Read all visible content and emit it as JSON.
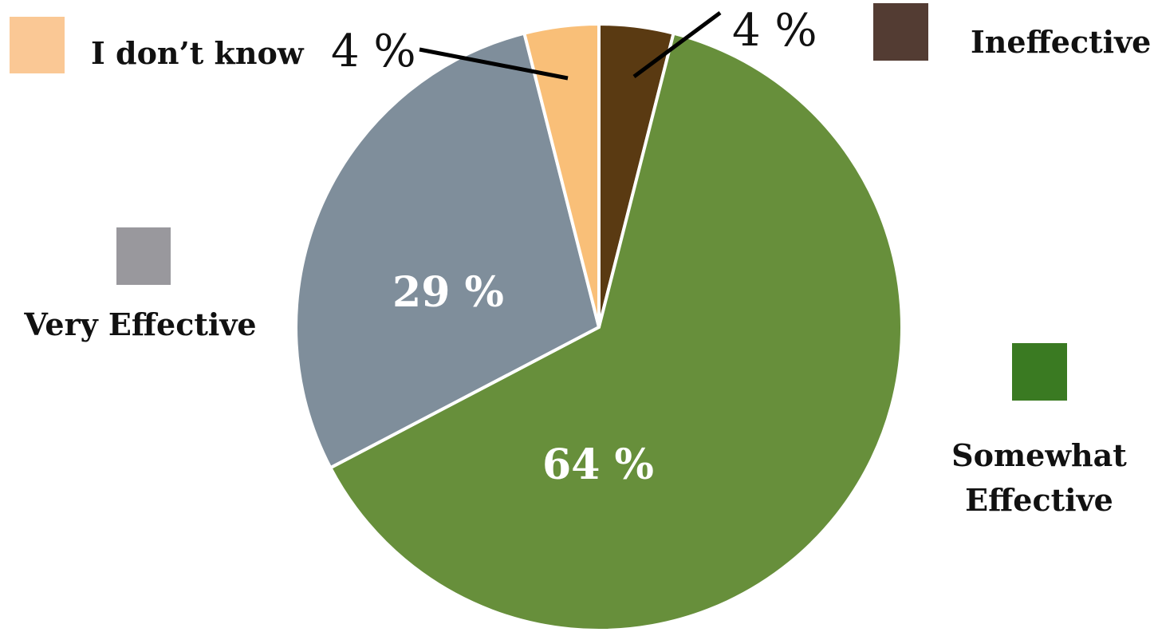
{
  "chart_data": {
    "type": "pie",
    "title": "",
    "categories": [
      "Ineffective",
      "Somewhat Effective",
      "Very Effective",
      "I don’t know"
    ],
    "values": [
      4,
      64,
      29,
      4
    ],
    "value_labels": [
      "4 %",
      "64 %",
      "29 %",
      "4 %"
    ],
    "slice_colors": [
      "#5a3a12",
      "#678f3b",
      "#7f8e9b",
      "#f9bf78"
    ],
    "legend_colors": [
      "#533c33",
      "#3a7a22",
      "#99989d",
      "#fac895"
    ],
    "legend": {
      "i_dont_know": "I don’t know",
      "ineffective": "Ineffective",
      "very_effective": "Very Effective",
      "somewhat_line1": "Somewhat",
      "somewhat_line2": "Effective"
    },
    "legend_placement": "around"
  }
}
